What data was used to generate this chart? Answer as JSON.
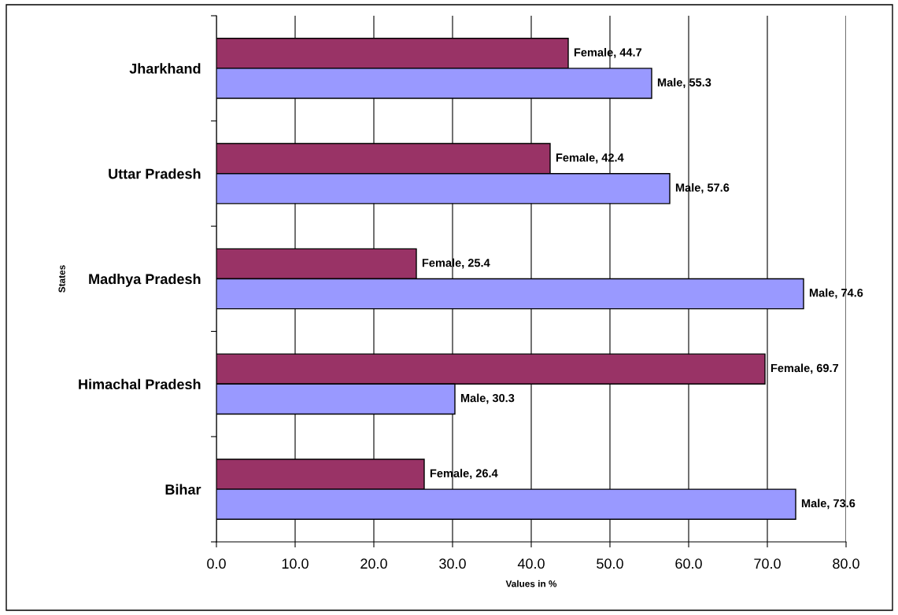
{
  "chart_data": {
    "type": "bar",
    "orientation": "horizontal",
    "categories": [
      "Jharkhand",
      "Uttar Pradesh",
      "Madhya Pradesh",
      "Himachal Pradesh",
      "Bihar"
    ],
    "series": [
      {
        "color": "#993366",
        "values": [
          44.7,
          42.4,
          25.4,
          69.7,
          26.4
        ],
        "value_labels": [
          "Female, 44.7",
          "Female, 42.4",
          "Female, 25.4",
          "Female, 69.7",
          "Female, 26.4"
        ]
      },
      {
        "color": "#9999ff",
        "values": [
          55.3,
          57.6,
          74.6,
          30.3,
          73.6
        ],
        "value_labels": [
          "Male, 55.3",
          "Male, 57.6",
          "Male, 74.6",
          "Male, 30.3",
          "Male, 73.6"
        ]
      }
    ],
    "xlabel": "Values in %",
    "ylabel": "States",
    "xlim": [
      0,
      80
    ],
    "xticks": [
      {
        "value": 0,
        "label": "0.0"
      },
      {
        "value": 10,
        "label": "10.0"
      },
      {
        "value": 20,
        "label": "20.0"
      },
      {
        "value": 30,
        "label": "30.0"
      },
      {
        "value": 40,
        "label": "40.0"
      },
      {
        "value": 50,
        "label": "50.0"
      },
      {
        "value": 60,
        "label": "60.0"
      },
      {
        "value": 70,
        "label": "70.0"
      },
      {
        "value": 80,
        "label": "80.0"
      }
    ],
    "grid": "x"
  }
}
